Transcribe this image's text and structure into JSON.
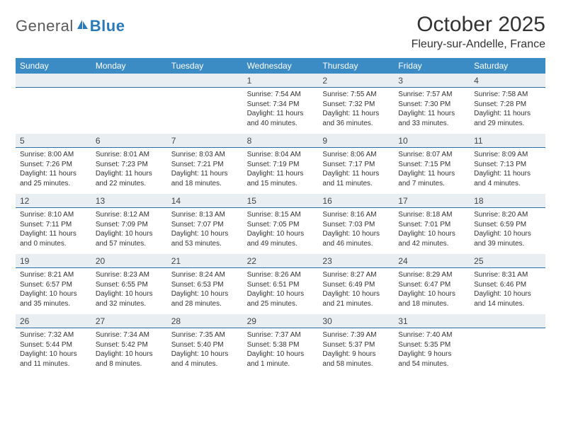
{
  "logo": {
    "word1": "General",
    "word2": "Blue"
  },
  "header": {
    "title": "October 2025",
    "location": "Fleury-sur-Andelle, France"
  },
  "colors": {
    "header_bg": "#3b8bc4",
    "header_text": "#ffffff",
    "daynum_bg": "#e9eef2",
    "daynum_border": "#2a6fa3",
    "text": "#333333",
    "logo_gray": "#5a5a5a",
    "logo_blue": "#2a7ab8"
  },
  "weekdays": [
    "Sunday",
    "Monday",
    "Tuesday",
    "Wednesday",
    "Thursday",
    "Friday",
    "Saturday"
  ],
  "weeks": [
    [
      {
        "n": "",
        "sunrise": "",
        "sunset": "",
        "daylight1": "",
        "daylight2": ""
      },
      {
        "n": "",
        "sunrise": "",
        "sunset": "",
        "daylight1": "",
        "daylight2": ""
      },
      {
        "n": "",
        "sunrise": "",
        "sunset": "",
        "daylight1": "",
        "daylight2": ""
      },
      {
        "n": "1",
        "sunrise": "Sunrise: 7:54 AM",
        "sunset": "Sunset: 7:34 PM",
        "daylight1": "Daylight: 11 hours",
        "daylight2": "and 40 minutes."
      },
      {
        "n": "2",
        "sunrise": "Sunrise: 7:55 AM",
        "sunset": "Sunset: 7:32 PM",
        "daylight1": "Daylight: 11 hours",
        "daylight2": "and 36 minutes."
      },
      {
        "n": "3",
        "sunrise": "Sunrise: 7:57 AM",
        "sunset": "Sunset: 7:30 PM",
        "daylight1": "Daylight: 11 hours",
        "daylight2": "and 33 minutes."
      },
      {
        "n": "4",
        "sunrise": "Sunrise: 7:58 AM",
        "sunset": "Sunset: 7:28 PM",
        "daylight1": "Daylight: 11 hours",
        "daylight2": "and 29 minutes."
      }
    ],
    [
      {
        "n": "5",
        "sunrise": "Sunrise: 8:00 AM",
        "sunset": "Sunset: 7:26 PM",
        "daylight1": "Daylight: 11 hours",
        "daylight2": "and 25 minutes."
      },
      {
        "n": "6",
        "sunrise": "Sunrise: 8:01 AM",
        "sunset": "Sunset: 7:23 PM",
        "daylight1": "Daylight: 11 hours",
        "daylight2": "and 22 minutes."
      },
      {
        "n": "7",
        "sunrise": "Sunrise: 8:03 AM",
        "sunset": "Sunset: 7:21 PM",
        "daylight1": "Daylight: 11 hours",
        "daylight2": "and 18 minutes."
      },
      {
        "n": "8",
        "sunrise": "Sunrise: 8:04 AM",
        "sunset": "Sunset: 7:19 PM",
        "daylight1": "Daylight: 11 hours",
        "daylight2": "and 15 minutes."
      },
      {
        "n": "9",
        "sunrise": "Sunrise: 8:06 AM",
        "sunset": "Sunset: 7:17 PM",
        "daylight1": "Daylight: 11 hours",
        "daylight2": "and 11 minutes."
      },
      {
        "n": "10",
        "sunrise": "Sunrise: 8:07 AM",
        "sunset": "Sunset: 7:15 PM",
        "daylight1": "Daylight: 11 hours",
        "daylight2": "and 7 minutes."
      },
      {
        "n": "11",
        "sunrise": "Sunrise: 8:09 AM",
        "sunset": "Sunset: 7:13 PM",
        "daylight1": "Daylight: 11 hours",
        "daylight2": "and 4 minutes."
      }
    ],
    [
      {
        "n": "12",
        "sunrise": "Sunrise: 8:10 AM",
        "sunset": "Sunset: 7:11 PM",
        "daylight1": "Daylight: 11 hours",
        "daylight2": "and 0 minutes."
      },
      {
        "n": "13",
        "sunrise": "Sunrise: 8:12 AM",
        "sunset": "Sunset: 7:09 PM",
        "daylight1": "Daylight: 10 hours",
        "daylight2": "and 57 minutes."
      },
      {
        "n": "14",
        "sunrise": "Sunrise: 8:13 AM",
        "sunset": "Sunset: 7:07 PM",
        "daylight1": "Daylight: 10 hours",
        "daylight2": "and 53 minutes."
      },
      {
        "n": "15",
        "sunrise": "Sunrise: 8:15 AM",
        "sunset": "Sunset: 7:05 PM",
        "daylight1": "Daylight: 10 hours",
        "daylight2": "and 49 minutes."
      },
      {
        "n": "16",
        "sunrise": "Sunrise: 8:16 AM",
        "sunset": "Sunset: 7:03 PM",
        "daylight1": "Daylight: 10 hours",
        "daylight2": "and 46 minutes."
      },
      {
        "n": "17",
        "sunrise": "Sunrise: 8:18 AM",
        "sunset": "Sunset: 7:01 PM",
        "daylight1": "Daylight: 10 hours",
        "daylight2": "and 42 minutes."
      },
      {
        "n": "18",
        "sunrise": "Sunrise: 8:20 AM",
        "sunset": "Sunset: 6:59 PM",
        "daylight1": "Daylight: 10 hours",
        "daylight2": "and 39 minutes."
      }
    ],
    [
      {
        "n": "19",
        "sunrise": "Sunrise: 8:21 AM",
        "sunset": "Sunset: 6:57 PM",
        "daylight1": "Daylight: 10 hours",
        "daylight2": "and 35 minutes."
      },
      {
        "n": "20",
        "sunrise": "Sunrise: 8:23 AM",
        "sunset": "Sunset: 6:55 PM",
        "daylight1": "Daylight: 10 hours",
        "daylight2": "and 32 minutes."
      },
      {
        "n": "21",
        "sunrise": "Sunrise: 8:24 AM",
        "sunset": "Sunset: 6:53 PM",
        "daylight1": "Daylight: 10 hours",
        "daylight2": "and 28 minutes."
      },
      {
        "n": "22",
        "sunrise": "Sunrise: 8:26 AM",
        "sunset": "Sunset: 6:51 PM",
        "daylight1": "Daylight: 10 hours",
        "daylight2": "and 25 minutes."
      },
      {
        "n": "23",
        "sunrise": "Sunrise: 8:27 AM",
        "sunset": "Sunset: 6:49 PM",
        "daylight1": "Daylight: 10 hours",
        "daylight2": "and 21 minutes."
      },
      {
        "n": "24",
        "sunrise": "Sunrise: 8:29 AM",
        "sunset": "Sunset: 6:47 PM",
        "daylight1": "Daylight: 10 hours",
        "daylight2": "and 18 minutes."
      },
      {
        "n": "25",
        "sunrise": "Sunrise: 8:31 AM",
        "sunset": "Sunset: 6:46 PM",
        "daylight1": "Daylight: 10 hours",
        "daylight2": "and 14 minutes."
      }
    ],
    [
      {
        "n": "26",
        "sunrise": "Sunrise: 7:32 AM",
        "sunset": "Sunset: 5:44 PM",
        "daylight1": "Daylight: 10 hours",
        "daylight2": "and 11 minutes."
      },
      {
        "n": "27",
        "sunrise": "Sunrise: 7:34 AM",
        "sunset": "Sunset: 5:42 PM",
        "daylight1": "Daylight: 10 hours",
        "daylight2": "and 8 minutes."
      },
      {
        "n": "28",
        "sunrise": "Sunrise: 7:35 AM",
        "sunset": "Sunset: 5:40 PM",
        "daylight1": "Daylight: 10 hours",
        "daylight2": "and 4 minutes."
      },
      {
        "n": "29",
        "sunrise": "Sunrise: 7:37 AM",
        "sunset": "Sunset: 5:38 PM",
        "daylight1": "Daylight: 10 hours",
        "daylight2": "and 1 minute."
      },
      {
        "n": "30",
        "sunrise": "Sunrise: 7:39 AM",
        "sunset": "Sunset: 5:37 PM",
        "daylight1": "Daylight: 9 hours",
        "daylight2": "and 58 minutes."
      },
      {
        "n": "31",
        "sunrise": "Sunrise: 7:40 AM",
        "sunset": "Sunset: 5:35 PM",
        "daylight1": "Daylight: 9 hours",
        "daylight2": "and 54 minutes."
      },
      {
        "n": "",
        "sunrise": "",
        "sunset": "",
        "daylight1": "",
        "daylight2": ""
      }
    ]
  ]
}
